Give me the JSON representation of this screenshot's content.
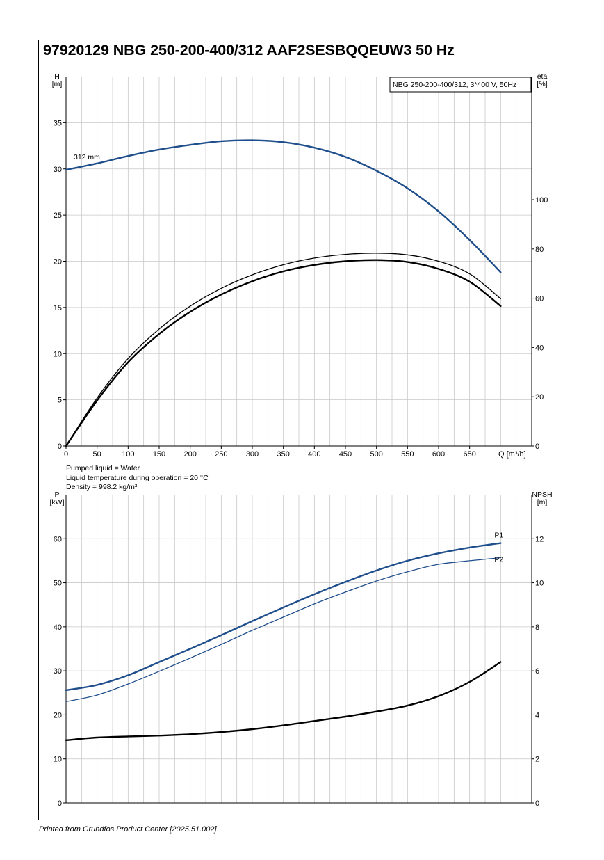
{
  "title": "97920129 NBG 250-200-400/312 AAF2SESBQQEUW3 50 Hz",
  "footer": "Printed from Grundfos Product Center [2025.51.002]",
  "liquid": {
    "line1": "Pumped liquid = Water",
    "line2": "Liquid temperature during operation = 20 °C",
    "line3": "Density = 998.2 kg/m³"
  },
  "colors": {
    "blue": "#1f4e8c",
    "black": "#000000",
    "grid": "#c8c8c8"
  },
  "chart_data": [
    {
      "type": "line",
      "legend_box": "NBG 250-200-400/312, 3*400 V, 50Hz",
      "xlabel": "Q [m³/h]",
      "ylabel_left": [
        "H",
        "[m]"
      ],
      "ylabel_right": [
        "eta",
        "[%]"
      ],
      "xlim": [
        0,
        750
      ],
      "ylim_left": [
        0,
        40
      ],
      "ylim_right": [
        0,
        150
      ],
      "x_ticks": [
        0,
        50,
        100,
        150,
        200,
        250,
        300,
        350,
        400,
        450,
        500,
        550,
        600,
        650
      ],
      "y_ticks_left": [
        0,
        5,
        10,
        15,
        20,
        25,
        30,
        35
      ],
      "y_ticks_right": [
        0,
        20,
        40,
        60,
        80,
        100
      ],
      "grid": true,
      "series": [
        {
          "name": "312 mm",
          "axis": "left",
          "color": "#1f4e8c",
          "x": [
            0,
            50,
            100,
            150,
            200,
            250,
            300,
            350,
            400,
            450,
            500,
            550,
            600,
            650,
            700
          ],
          "y": [
            29.9,
            30.6,
            31.4,
            32.1,
            32.6,
            33.0,
            33.1,
            32.9,
            32.3,
            31.3,
            29.8,
            27.9,
            25.4,
            22.3,
            18.8
          ]
        },
        {
          "name": "",
          "axis": "right",
          "color": "#000000",
          "x": [
            0,
            50,
            100,
            150,
            200,
            250,
            300,
            350,
            400,
            450,
            500,
            550,
            600,
            650,
            700
          ],
          "y": [
            0,
            19.5,
            35.5,
            47.5,
            56.8,
            64.0,
            69.5,
            73.6,
            76.3,
            77.8,
            78.3,
            77.6,
            75.0,
            69.9,
            59.8
          ]
        },
        {
          "name": "",
          "axis": "right",
          "color": "#000000",
          "x": [
            0,
            50,
            100,
            150,
            200,
            250,
            300,
            350,
            400,
            450,
            500,
            550,
            600,
            650,
            700
          ],
          "y": [
            0,
            18.5,
            34.0,
            45.5,
            54.5,
            61.5,
            66.9,
            70.9,
            73.5,
            75.0,
            75.5,
            74.7,
            71.9,
            66.7,
            56.8
          ]
        }
      ]
    },
    {
      "type": "line",
      "xlim": [
        0,
        750
      ],
      "ylabel_left": [
        "P",
        "[kW]"
      ],
      "ylabel_right": [
        "NPSH",
        "[m]"
      ],
      "ylim_left": [
        0,
        70
      ],
      "ylim_right": [
        0,
        14
      ],
      "y_ticks_left": [
        0,
        10,
        20,
        30,
        40,
        50,
        60
      ],
      "y_ticks_right": [
        0,
        2,
        4,
        6,
        8,
        10,
        12
      ],
      "grid": true,
      "series": [
        {
          "name": "P1",
          "axis": "left",
          "color": "#1f4e8c",
          "x": [
            0,
            50,
            100,
            150,
            200,
            250,
            300,
            350,
            400,
            450,
            500,
            550,
            600,
            650,
            700
          ],
          "y": [
            25.6,
            26.8,
            29.0,
            32.0,
            35.0,
            38.1,
            41.3,
            44.4,
            47.4,
            50.2,
            52.8,
            55.0,
            56.7,
            58.0,
            59.0
          ]
        },
        {
          "name": "P2",
          "axis": "left",
          "color": "#1f4e8c",
          "x": [
            0,
            50,
            100,
            150,
            200,
            250,
            300,
            350,
            400,
            450,
            500,
            550,
            600,
            650,
            700
          ],
          "y": [
            23.0,
            24.5,
            27.0,
            29.9,
            32.9,
            36.0,
            39.2,
            42.2,
            45.2,
            47.9,
            50.4,
            52.5,
            54.2,
            55.0,
            55.7
          ]
        },
        {
          "name": "",
          "axis": "right",
          "color": "#000000",
          "x": [
            0,
            50,
            100,
            150,
            200,
            250,
            300,
            350,
            400,
            450,
            500,
            550,
            600,
            650,
            700
          ],
          "y": [
            2.85,
            2.97,
            3.02,
            3.06,
            3.12,
            3.22,
            3.35,
            3.52,
            3.72,
            3.92,
            4.15,
            4.42,
            4.85,
            5.5,
            6.4
          ]
        }
      ]
    }
  ]
}
